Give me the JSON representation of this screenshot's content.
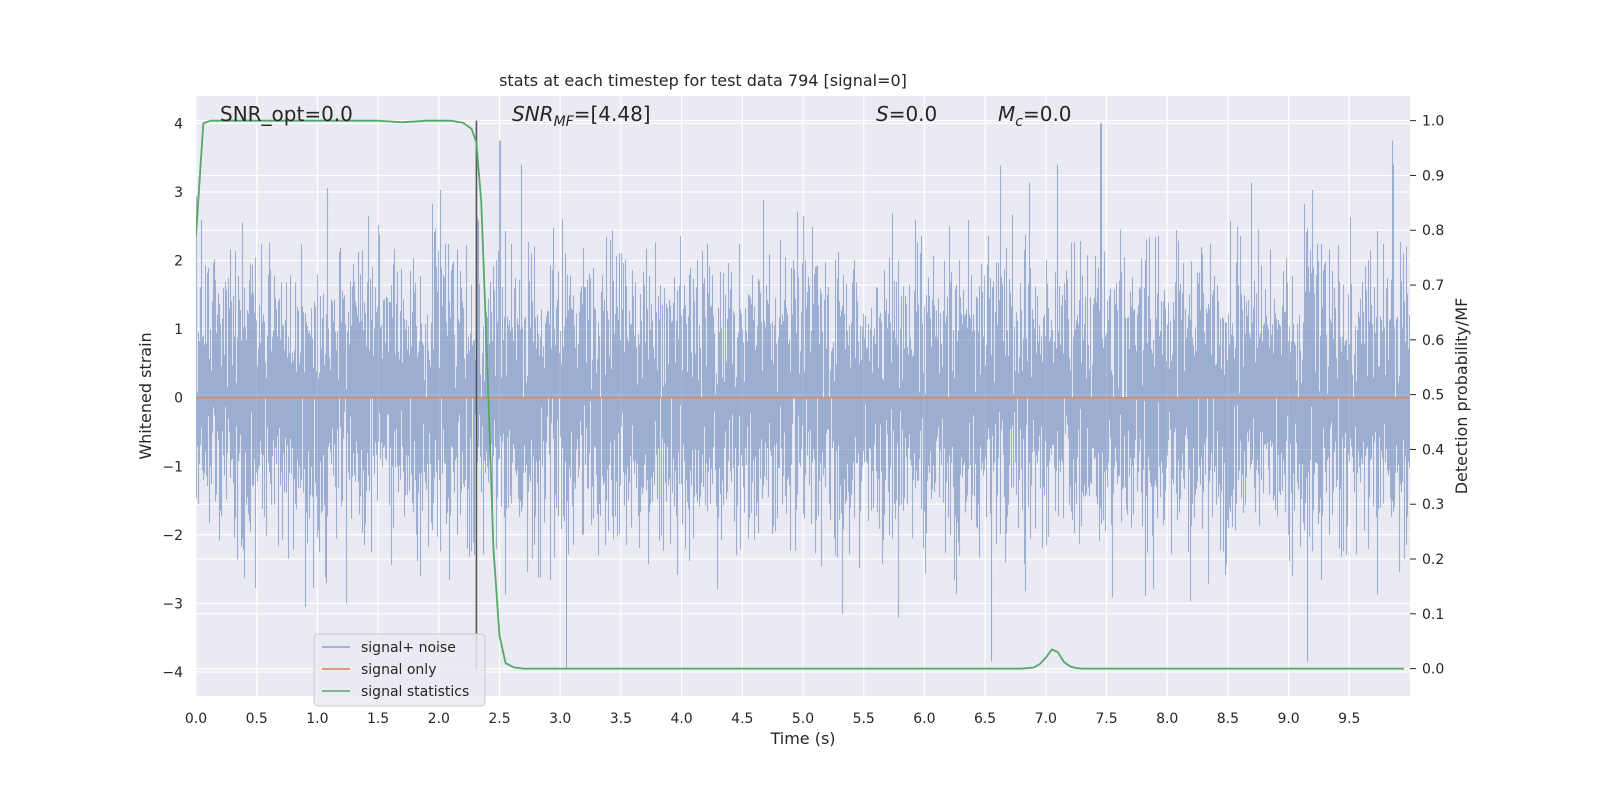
{
  "chart_data": {
    "type": "line",
    "title": "stats at each timestep for test data 794 [signal=0]",
    "xlabel": "Time (s)",
    "ylabel_left": "Whitened strain",
    "ylabel_right": "Detection probability/MF",
    "xlim": [
      0.0,
      10.0
    ],
    "ylim_left": [
      -4.35,
      4.4
    ],
    "ylim_right": [
      -0.05,
      1.045
    ],
    "x_ticks": [
      "0.0",
      "0.5",
      "1.0",
      "1.5",
      "2.0",
      "2.5",
      "3.0",
      "3.5",
      "4.0",
      "4.5",
      "5.0",
      "5.5",
      "6.0",
      "6.5",
      "7.0",
      "7.5",
      "8.0",
      "8.5",
      "9.0",
      "9.5"
    ],
    "y_ticks_left": [
      "−4",
      "−3",
      "−2",
      "−1",
      "0",
      "1",
      "2",
      "3",
      "4"
    ],
    "y_ticks_right": [
      "0.0",
      "0.1",
      "0.2",
      "0.3",
      "0.4",
      "0.5",
      "0.6",
      "0.7",
      "0.8",
      "0.9",
      "1.0"
    ],
    "grid": true,
    "legend_position": "lower-left",
    "colors": {
      "background": "#eaeaf2",
      "grid": "#ffffff",
      "signal_noise": "#4c72b0",
      "signal_only": "#dd8452",
      "signal_statistics": "#55a868",
      "marker_line": "#555555"
    },
    "annotations": {
      "snr_opt": "SNR_opt=0.0",
      "snr_mf_main": "SNR",
      "snr_mf_sub": "MF",
      "snr_mf_value": "=[4.48]",
      "s_main": "S",
      "s_value": "=0.0",
      "mc_main": "M",
      "mc_sub": "c",
      "mc_value": "=0.0"
    },
    "vertical_line_x": 2.31,
    "noise_envelope": {
      "core_abs": 1.5,
      "typical_peak_abs": 3.0,
      "max_pos": 4.0,
      "min_neg": -3.95,
      "notable_peaks": [
        [
          2.5,
          3.75
        ],
        [
          7.45,
          4.0
        ],
        [
          9.85,
          3.75
        ],
        [
          3.05,
          -3.95
        ],
        [
          6.55,
          -3.85
        ],
        [
          9.15,
          -3.85
        ]
      ]
    },
    "series": [
      {
        "name": "signal+ noise",
        "axis": "left",
        "style": "whitened-noise"
      },
      {
        "name": "signal only",
        "axis": "left",
        "x": [
          0.0,
          10.0
        ],
        "y": [
          0.0,
          0.0
        ]
      },
      {
        "name": "signal statistics",
        "axis": "right",
        "x": [
          0.0,
          0.06,
          0.12,
          0.5,
          1.0,
          1.5,
          1.7,
          1.9,
          2.1,
          2.2,
          2.27,
          2.31,
          2.35,
          2.4,
          2.45,
          2.5,
          2.55,
          2.62,
          2.7,
          3.0,
          4.0,
          5.0,
          6.0,
          6.8,
          6.9,
          6.95,
          7.0,
          7.05,
          7.1,
          7.15,
          7.2,
          7.25,
          7.3,
          7.4,
          8.0,
          9.0,
          9.95
        ],
        "y": [
          0.79,
          0.995,
          1.0,
          1.0,
          1.0,
          1.0,
          0.997,
          1.0,
          1.0,
          0.996,
          0.985,
          0.96,
          0.85,
          0.55,
          0.22,
          0.06,
          0.01,
          0.002,
          0.0,
          0.0,
          0.0,
          0.0,
          0.0,
          0.0,
          0.002,
          0.008,
          0.02,
          0.035,
          0.03,
          0.012,
          0.004,
          0.001,
          0.0,
          0.0,
          0.0,
          0.0,
          0.0
        ]
      }
    ]
  }
}
